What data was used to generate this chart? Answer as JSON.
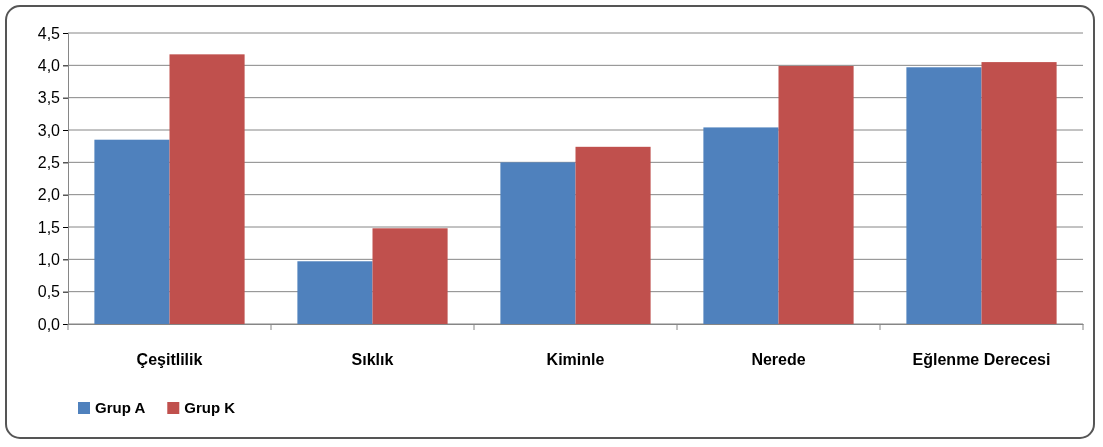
{
  "chart_data": {
    "type": "bar",
    "categories": [
      "Çeşitlilik",
      "Sıklık",
      "Kiminle",
      "Nerede",
      "Eğlenme Derecesi"
    ],
    "series": [
      {
        "name": "Grup A",
        "color": "#4f81bd",
        "values": [
          2.85,
          0.97,
          2.5,
          3.04,
          3.97
        ]
      },
      {
        "name": "Grup K",
        "color": "#c0504d",
        "values": [
          4.17,
          1.48,
          2.74,
          3.99,
          4.05
        ]
      }
    ],
    "ylim": [
      0,
      4.5
    ],
    "yticks": [
      {
        "value": 0,
        "label": "0,0"
      },
      {
        "value": 0.5,
        "label": "0,5"
      },
      {
        "value": 1,
        "label": "1,0"
      },
      {
        "value": 1.5,
        "label": "1,5"
      },
      {
        "value": 2,
        "label": "2,0"
      },
      {
        "value": 2.5,
        "label": "2,5"
      },
      {
        "value": 3,
        "label": "3,0"
      },
      {
        "value": 3.5,
        "label": "3,5"
      },
      {
        "value": 4,
        "label": "4,0"
      },
      {
        "value": 4.5,
        "label": "4,5"
      }
    ],
    "grid": "y",
    "legend": "bottom left"
  }
}
